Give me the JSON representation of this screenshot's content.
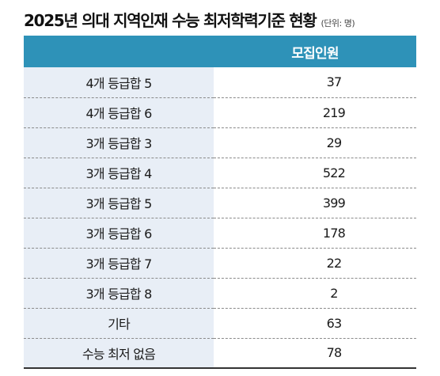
{
  "title": "2025년 의대 지역인재 수능 최저학력기준 현황",
  "unit": "(단위: 명)",
  "table": {
    "headers": [
      "",
      "모집인원"
    ],
    "rows": [
      {
        "label": "4개 등급합 5",
        "value": "37"
      },
      {
        "label": "4개 등급합 6",
        "value": "219"
      },
      {
        "label": "3개 등급합 3",
        "value": "29"
      },
      {
        "label": "3개 등급합 4",
        "value": "522"
      },
      {
        "label": "3개 등급합 5",
        "value": "399"
      },
      {
        "label": "3개 등급합 6",
        "value": "178"
      },
      {
        "label": "3개 등급합 7",
        "value": "22"
      },
      {
        "label": "3개 등급합 8",
        "value": "2"
      },
      {
        "label": "기타",
        "value": "63"
      },
      {
        "label": "수능 최저 없음",
        "value": "78"
      }
    ]
  },
  "colors": {
    "header_bg": "#2e92b8",
    "label_bg": "#e8eef6",
    "header_text": "#ffffff"
  }
}
